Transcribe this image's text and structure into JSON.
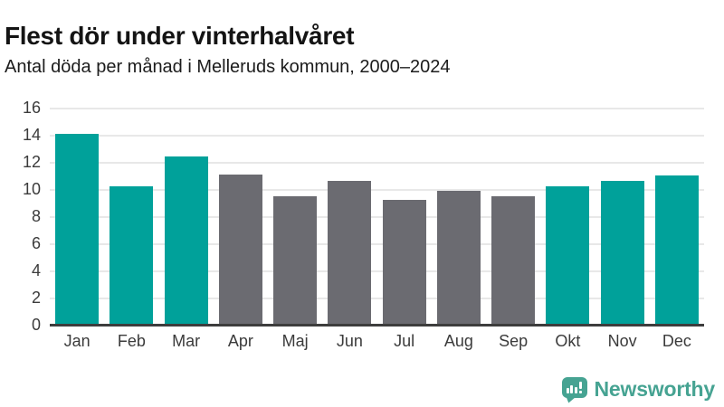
{
  "chart_data": {
    "type": "bar",
    "title": "Flest dör under vinterhalvåret",
    "subtitle": "Antal döda per månad i Melleruds kommun, 2000–2024",
    "categories": [
      "Jan",
      "Feb",
      "Mar",
      "Apr",
      "Maj",
      "Jun",
      "Jul",
      "Aug",
      "Sep",
      "Okt",
      "Nov",
      "Dec"
    ],
    "values": [
      14.1,
      10.2,
      12.4,
      11.1,
      9.5,
      10.6,
      9.2,
      9.9,
      9.5,
      10.2,
      10.6,
      11.0
    ],
    "bar_colors": [
      "#00a19a",
      "#00a19a",
      "#00a19a",
      "#6b6b71",
      "#6b6b71",
      "#6b6b71",
      "#6b6b71",
      "#6b6b71",
      "#6b6b71",
      "#00a19a",
      "#00a19a",
      "#00a19a"
    ],
    "highlight_color": "#00a19a",
    "muted_color": "#6b6b71",
    "xlabel": "",
    "ylabel": "",
    "ylim": [
      0,
      16
    ],
    "yticks": [
      0,
      2,
      4,
      6,
      8,
      10,
      12,
      14,
      16
    ],
    "grid": "horizontal",
    "legend": "none"
  },
  "colors": {
    "title_text": "#141414",
    "axis_text": "#3b3b3b",
    "axis_line": "#3d3d3d",
    "gridline": "#e8e8e8",
    "background": "#ffffff",
    "logo": "#46a392"
  },
  "branding": {
    "logo_text": "Newsworthy",
    "logo_icon": "bar-chart-speech-bubble"
  }
}
